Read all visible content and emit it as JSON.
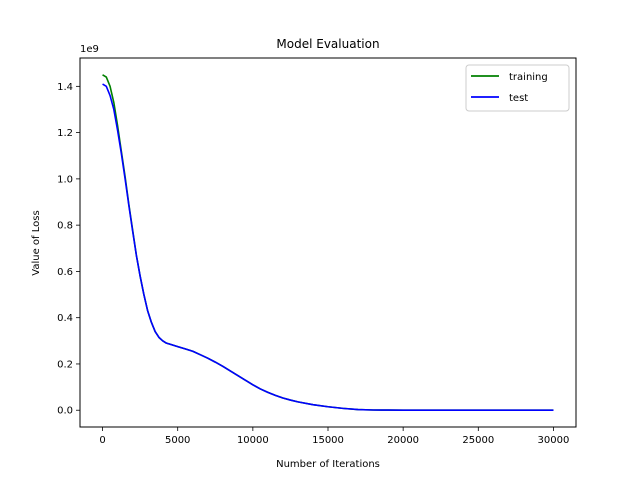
{
  "chart_data": {
    "type": "line",
    "title": "Model Evaluation",
    "xlabel": "Number of Iterations",
    "ylabel": "Value of Loss",
    "y_offset_label": "1e9",
    "y_scale": 1000000000,
    "xlim": [
      -1500,
      31500
    ],
    "ylim": [
      -0.0725,
      1.5225
    ],
    "x_ticks": [
      0,
      5000,
      10000,
      15000,
      20000,
      25000,
      30000
    ],
    "x_tick_labels": [
      "0",
      "5000",
      "10000",
      "15000",
      "20000",
      "25000",
      "30000"
    ],
    "y_ticks": [
      0.0,
      0.2,
      0.4,
      0.6,
      0.8,
      1.0,
      1.2,
      1.4
    ],
    "y_tick_labels": [
      "0.0",
      "0.2",
      "0.4",
      "0.6",
      "0.8",
      "1.0",
      "1.2",
      "1.4"
    ],
    "grid": false,
    "legend_position": "top-right",
    "series": [
      {
        "name": "training",
        "color": "#008000",
        "x": [
          0,
          250,
          500,
          750,
          1000,
          1250,
          1500,
          1750,
          2000,
          2250,
          2500,
          2750,
          3000,
          3250,
          3500,
          3750,
          4000,
          4250,
          4500,
          5000,
          5500,
          6000,
          6500,
          7000,
          7500,
          8000,
          8500,
          9000,
          9500,
          10000,
          10500,
          11000,
          11500,
          12000,
          12500,
          13000,
          14000,
          15000,
          16000,
          17000,
          18000,
          19000,
          20000,
          22000,
          25000,
          30000
        ],
        "values": [
          1.45,
          1.44,
          1.4,
          1.33,
          1.23,
          1.12,
          1.01,
          0.89,
          0.78,
          0.67,
          0.58,
          0.5,
          0.43,
          0.38,
          0.34,
          0.315,
          0.3,
          0.29,
          0.285,
          0.275,
          0.265,
          0.255,
          0.24,
          0.225,
          0.208,
          0.19,
          0.17,
          0.15,
          0.13,
          0.11,
          0.092,
          0.077,
          0.064,
          0.053,
          0.044,
          0.036,
          0.024,
          0.015,
          0.008,
          0.003,
          0.001,
          0.0005,
          0.0002,
          0.0001,
          0.0,
          0.0
        ]
      },
      {
        "name": "test",
        "color": "#0000ff",
        "x": [
          0,
          250,
          500,
          750,
          1000,
          1250,
          1500,
          1750,
          2000,
          2250,
          2500,
          2750,
          3000,
          3250,
          3500,
          3750,
          4000,
          4250,
          4500,
          5000,
          5500,
          6000,
          6500,
          7000,
          7500,
          8000,
          8500,
          9000,
          9500,
          10000,
          10500,
          11000,
          11500,
          12000,
          12500,
          13000,
          14000,
          15000,
          16000,
          17000,
          18000,
          19000,
          20000,
          22000,
          25000,
          30000
        ],
        "values": [
          1.41,
          1.4,
          1.36,
          1.3,
          1.21,
          1.11,
          1.0,
          0.885,
          0.775,
          0.67,
          0.58,
          0.5,
          0.43,
          0.38,
          0.34,
          0.315,
          0.3,
          0.29,
          0.285,
          0.275,
          0.265,
          0.255,
          0.24,
          0.225,
          0.208,
          0.19,
          0.17,
          0.15,
          0.13,
          0.11,
          0.092,
          0.077,
          0.064,
          0.053,
          0.044,
          0.036,
          0.024,
          0.015,
          0.008,
          0.003,
          0.001,
          0.0005,
          0.0002,
          0.0001,
          0.0,
          0.0
        ]
      }
    ]
  }
}
